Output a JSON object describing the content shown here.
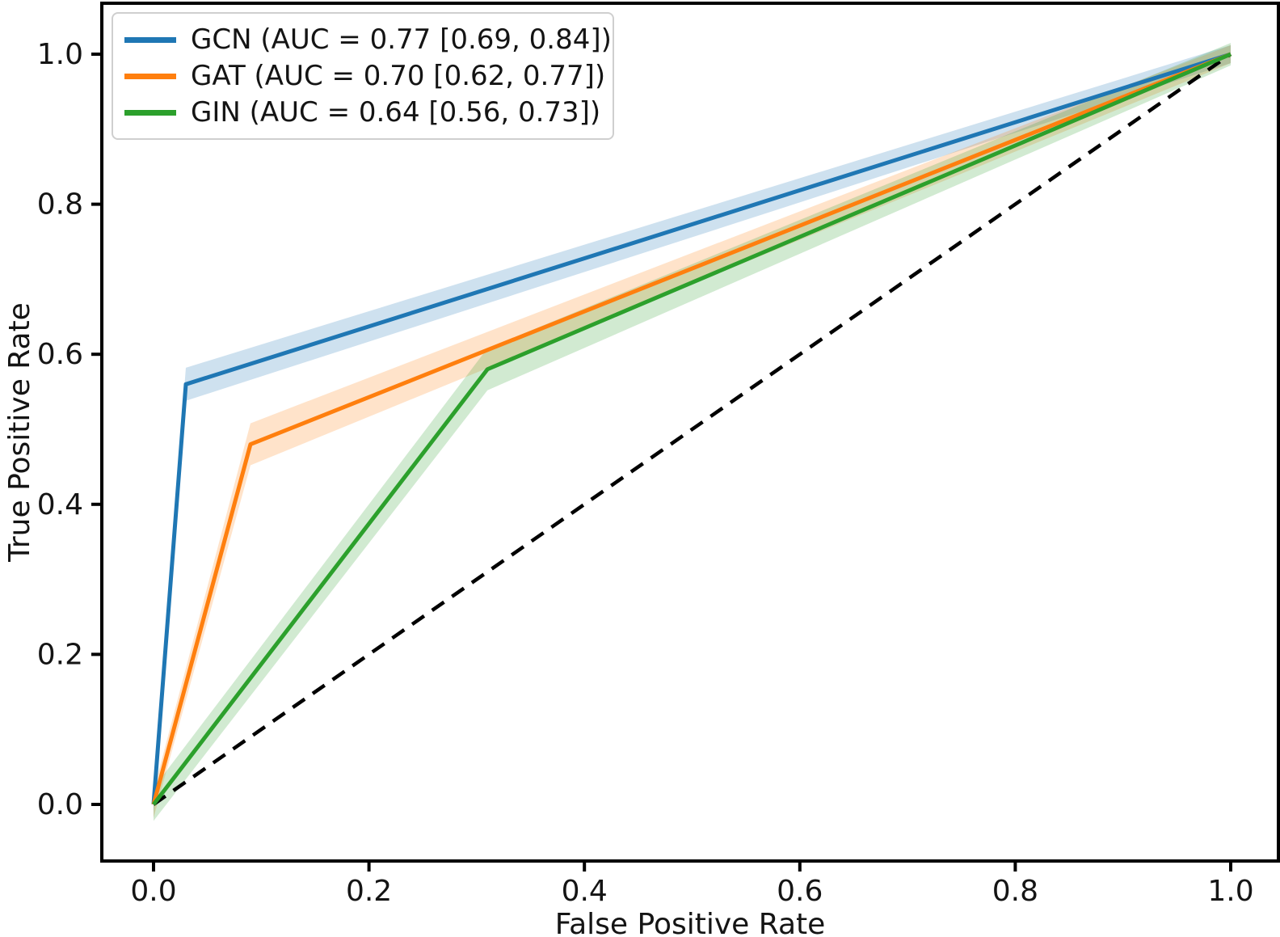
{
  "chart_data": {
    "type": "line",
    "subtype": "roc-curve",
    "title": "",
    "xlabel": "False Positive Rate",
    "ylabel": "True Positive Rate",
    "xlim": [
      -0.05,
      1.05
    ],
    "ylim": [
      -0.08,
      1.07
    ],
    "grid": false,
    "legend_position": "upper-left",
    "x_ticks": {
      "values": [
        0.0,
        0.2,
        0.4,
        0.6,
        0.8,
        1.0
      ],
      "labels": [
        "0.0",
        "0.2",
        "0.4",
        "0.6",
        "0.8",
        "1.0"
      ]
    },
    "y_ticks": {
      "values": [
        0.0,
        0.2,
        0.4,
        0.6,
        0.8,
        1.0
      ],
      "labels": [
        "0.0",
        "0.2",
        "0.4",
        "0.6",
        "0.8",
        "1.0"
      ]
    },
    "series": [
      {
        "name": "GCN",
        "legend_label": "GCN (AUC = 0.77 [0.69, 0.84])",
        "auc": 0.77,
        "auc_ci": [
          0.69,
          0.84
        ],
        "color": "#1f77b4",
        "band_alpha": 0.22,
        "points": [
          [
            0.0,
            0.0
          ],
          [
            0.03,
            0.56
          ],
          [
            1.0,
            1.0
          ]
        ],
        "band_halfwidths": [
          0.018,
          0.022,
          0.012
        ]
      },
      {
        "name": "GAT",
        "legend_label": "GAT (AUC = 0.70 [0.62, 0.77])",
        "auc": 0.7,
        "auc_ci": [
          0.62,
          0.77
        ],
        "color": "#ff7f0e",
        "band_alpha": 0.22,
        "points": [
          [
            0.0,
            0.0
          ],
          [
            0.09,
            0.48
          ],
          [
            1.0,
            1.0
          ]
        ],
        "band_halfwidths": [
          0.018,
          0.028,
          0.012
        ]
      },
      {
        "name": "GIN",
        "legend_label": "GIN (AUC = 0.64 [0.56, 0.73])",
        "auc": 0.64,
        "auc_ci": [
          0.56,
          0.73
        ],
        "color": "#2ca02c",
        "band_alpha": 0.22,
        "points": [
          [
            0.0,
            0.0
          ],
          [
            0.31,
            0.58
          ],
          [
            1.0,
            1.0
          ]
        ],
        "band_halfwidths": [
          0.022,
          0.028,
          0.015
        ]
      }
    ],
    "reference_line": {
      "name": "chance",
      "points": [
        [
          0.0,
          0.0
        ],
        [
          1.0,
          1.0
        ]
      ],
      "style": "dashed",
      "color": "#000000"
    }
  },
  "colors": {
    "spine": "#000000",
    "tick_text": "#141414",
    "axis_label_text": "#141414",
    "legend_border": "#cfcfcf",
    "background": "#ffffff"
  }
}
